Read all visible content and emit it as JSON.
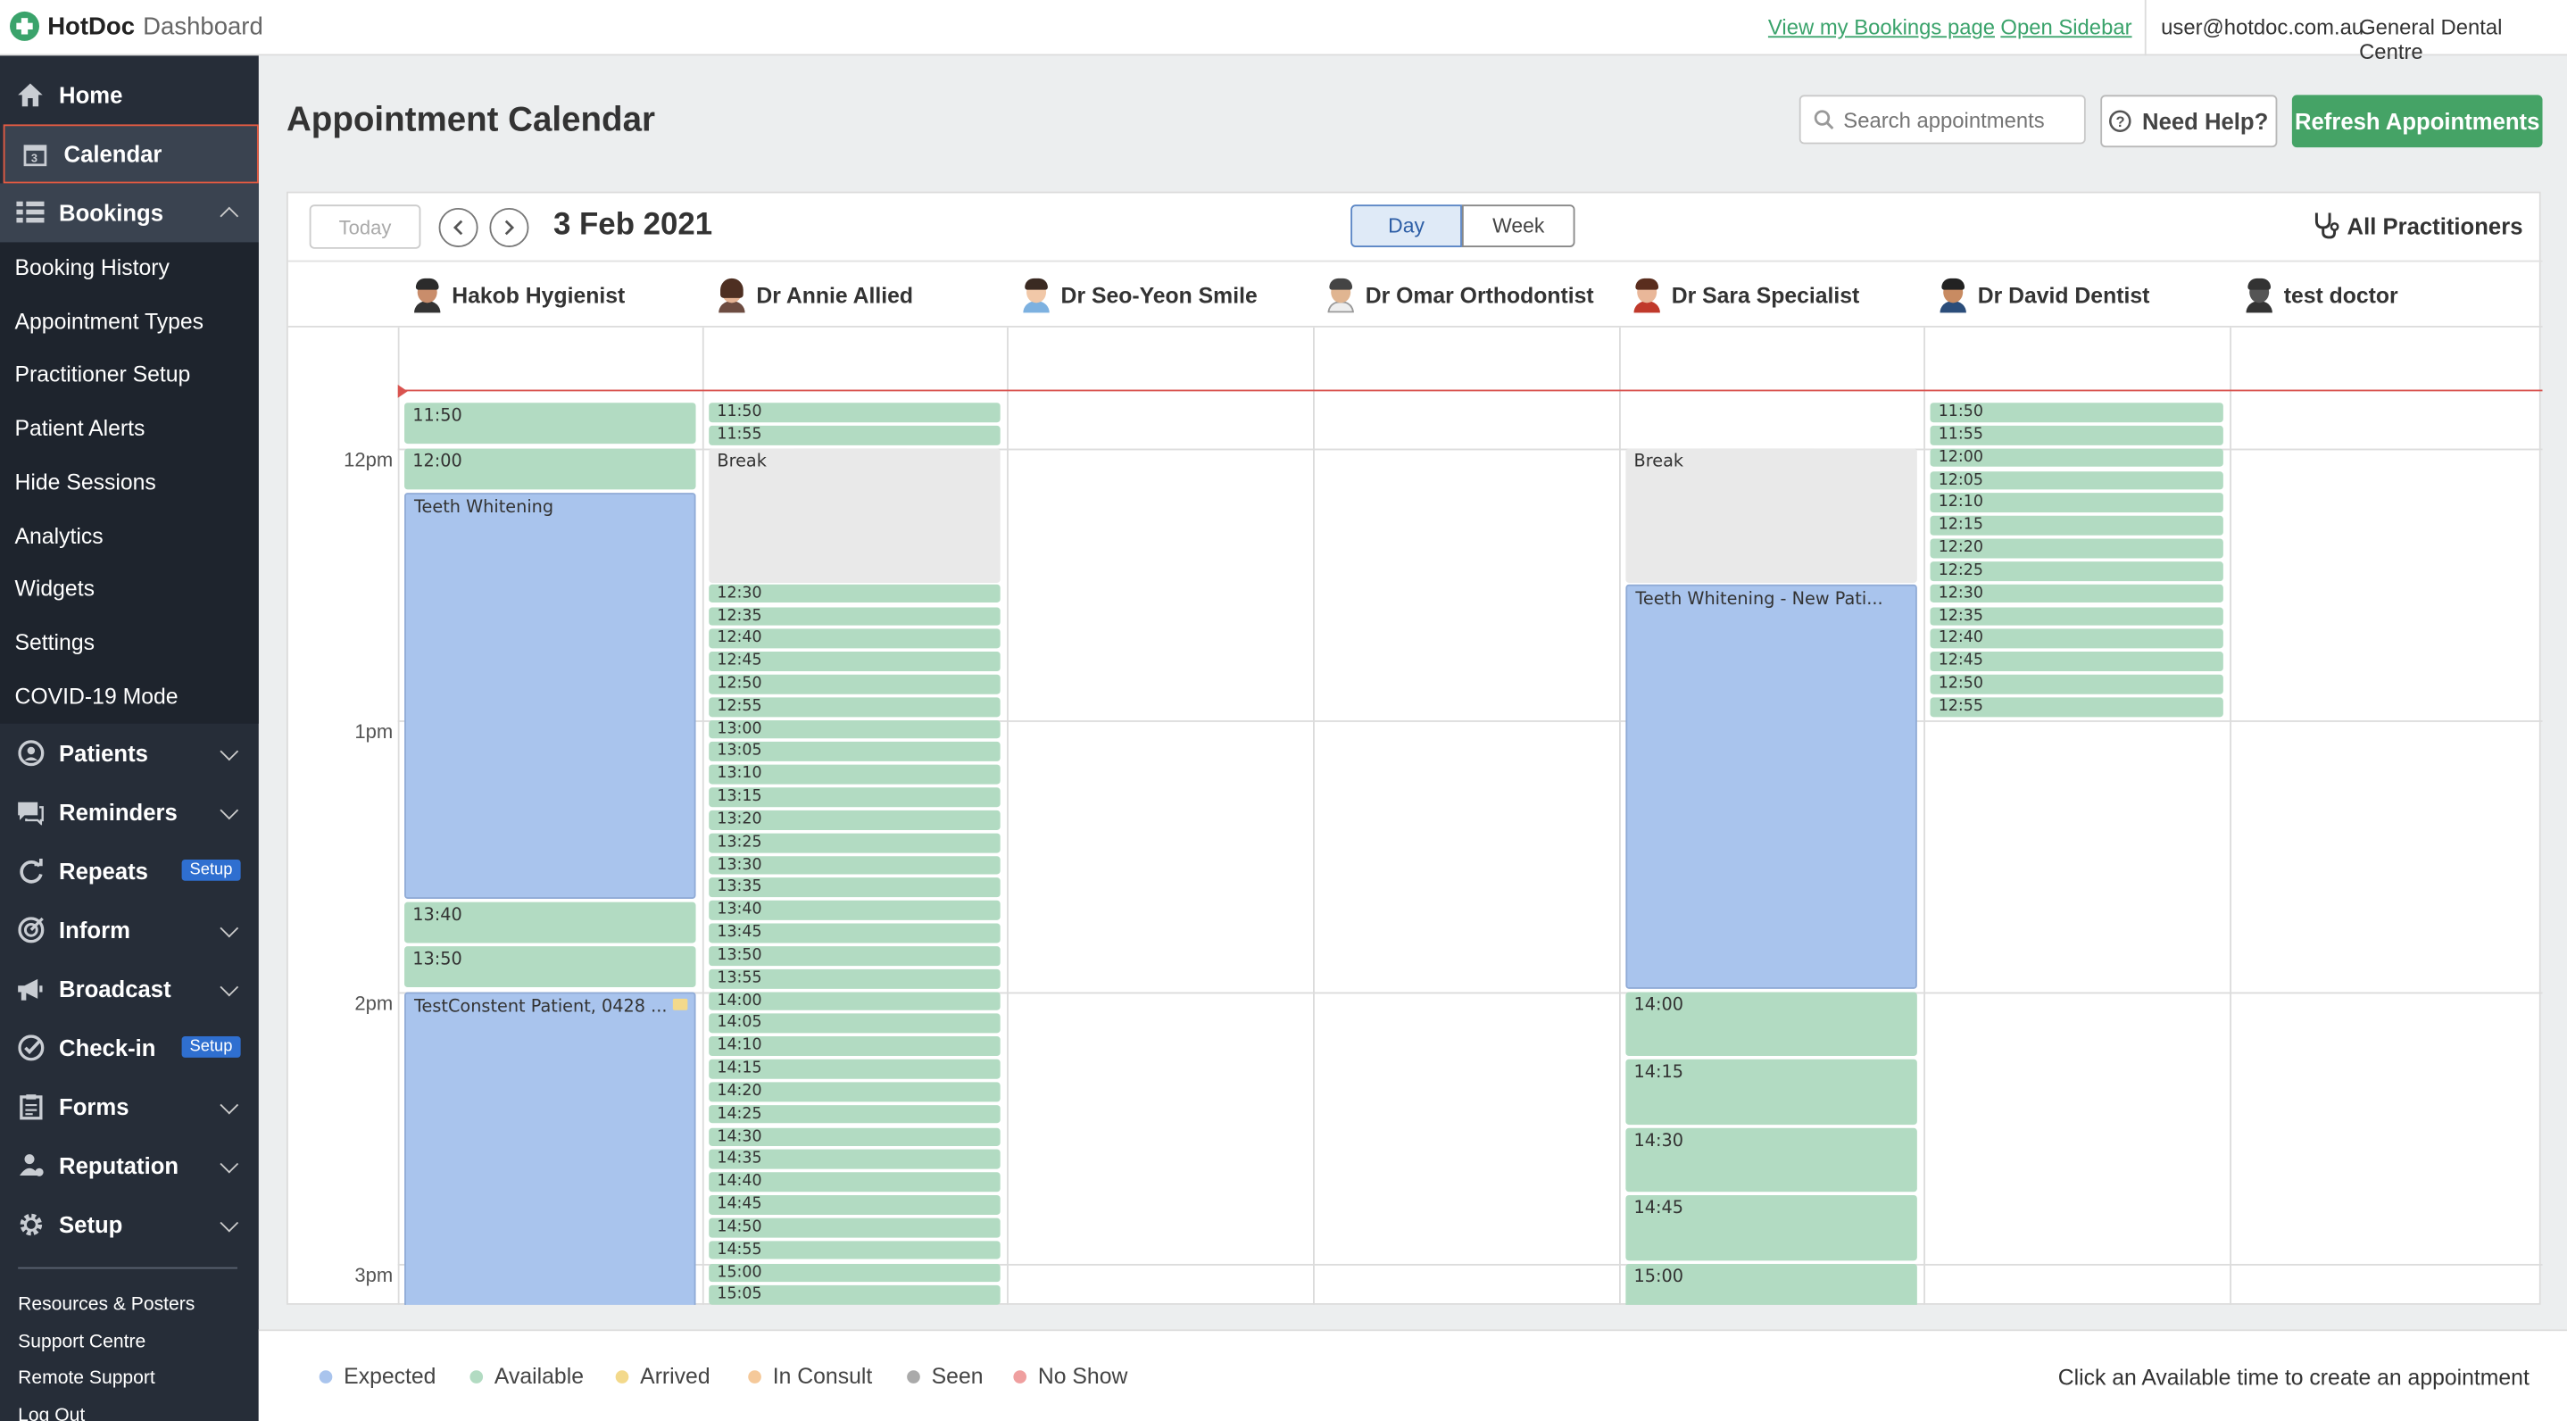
{
  "app": {
    "brand": "HotDoc",
    "sub": "Dashboard"
  },
  "topbar": {
    "bookings_link": "View my Bookings page",
    "sidebar_link": "Open Sidebar",
    "user": "user@hotdoc.com.au",
    "clinic": "General Dental Centre"
  },
  "sidebar": {
    "home": "Home",
    "calendar": "Calendar",
    "bookings": "Bookings",
    "bookings_sub": [
      "Booking History",
      "Appointment Types",
      "Practitioner Setup",
      "Patient Alerts",
      "Hide Sessions",
      "Analytics",
      "Widgets",
      "Settings",
      "COVID-19 Mode"
    ],
    "patients": "Patients",
    "reminders": "Reminders",
    "repeats": "Repeats",
    "repeats_badge": "Setup",
    "inform": "Inform",
    "broadcast": "Broadcast",
    "checkin": "Check-in",
    "checkin_badge": "Setup",
    "forms": "Forms",
    "reputation": "Reputation",
    "setup": "Setup",
    "footer": [
      "Resources & Posters",
      "Support Centre",
      "Remote Support",
      "Log Out"
    ]
  },
  "header": {
    "title": "Appointment Calendar",
    "search_placeholder": "Search appointments",
    "help": "Need Help?",
    "refresh": "Refresh Appointments"
  },
  "calendar": {
    "today": "Today",
    "date": "3 Feb 2021",
    "view_day": "Day",
    "view_week": "Week",
    "all_practitioners": "All Practitioners",
    "practitioners": [
      "Hakob Hygienist",
      "Dr Annie Allied",
      "Dr Seo-Yeon Smile",
      "Dr Omar Orthodontist",
      "Dr Sara Specialist",
      "Dr David Dentist",
      "test doctor"
    ],
    "hours": [
      "12pm",
      "1pm",
      "2pm",
      "3pm"
    ],
    "hakob": {
      "slots": [
        "11:50",
        "12:00",
        "13:40",
        "13:50"
      ],
      "appt1": "Teeth Whitening",
      "appt2": "TestConstent Patient, 0428 ..."
    },
    "annie": {
      "slots_a": [
        "11:50",
        "11:55"
      ],
      "break": "Break",
      "slots_b": [
        "12:30",
        "12:35",
        "12:40",
        "12:45",
        "12:50",
        "12:55",
        "13:00",
        "13:05",
        "13:10",
        "13:15",
        "13:20",
        "13:25",
        "13:30",
        "13:35",
        "13:40",
        "13:45",
        "13:50",
        "13:55",
        "14:00",
        "14:05",
        "14:10",
        "14:15",
        "14:20",
        "14:25",
        "14:30",
        "14:35",
        "14:40",
        "14:45",
        "14:50",
        "14:55",
        "15:00",
        "15:05"
      ]
    },
    "sara": {
      "break": "Break",
      "appt": "Teeth Whitening - New Pati...",
      "slots": [
        "14:00",
        "14:15",
        "14:30",
        "14:45",
        "15:00"
      ]
    },
    "david": {
      "slots": [
        "11:50",
        "11:55",
        "12:00",
        "12:05",
        "12:10",
        "12:15",
        "12:20",
        "12:25",
        "12:30",
        "12:35",
        "12:40",
        "12:45",
        "12:50",
        "12:55"
      ]
    }
  },
  "legend": {
    "items": [
      {
        "label": "Expected",
        "color": "#a9c4ed"
      },
      {
        "label": "Available",
        "color": "#b2dbc2"
      },
      {
        "label": "Arrived",
        "color": "#f3d98b"
      },
      {
        "label": "In Consult",
        "color": "#f5c99a"
      },
      {
        "label": "Seen",
        "color": "#aaaaaa"
      },
      {
        "label": "No Show",
        "color": "#ef9f9f"
      }
    ],
    "hint": "Click an Available time to create an appointment"
  }
}
